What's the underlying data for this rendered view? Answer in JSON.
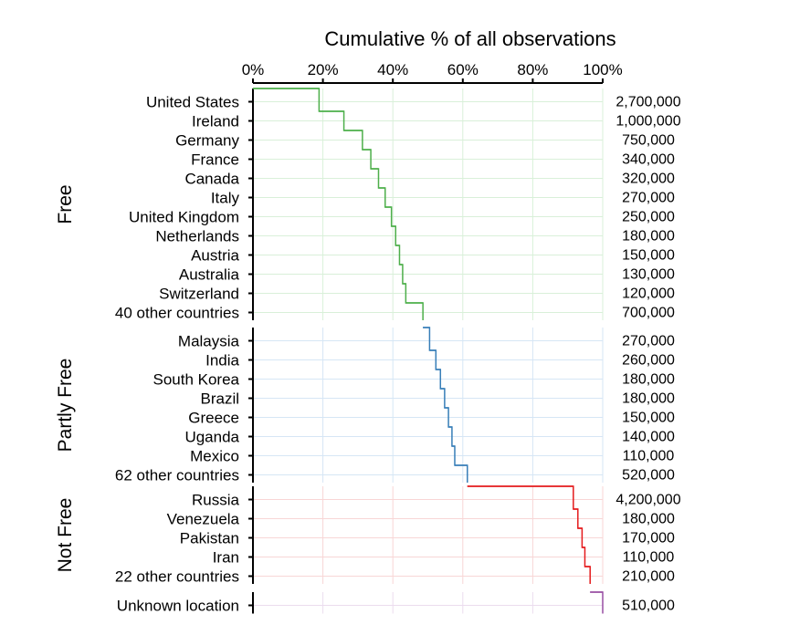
{
  "chart_data": {
    "type": "line",
    "title": "Cumulative % of all observations",
    "x_ticks": [
      "0%",
      "20%",
      "40%",
      "60%",
      "80%",
      "100%"
    ],
    "xlim": [
      0,
      100
    ],
    "grid": true,
    "groups": [
      {
        "name": "Free",
        "color": "#4daf4a",
        "gridColor": "#d9f0d9",
        "items": [
          {
            "label": "United States",
            "value": "2,700,000",
            "start": 0.0,
            "end": 18.9
          },
          {
            "label": "Ireland",
            "value": "1,000,000",
            "start": 18.9,
            "end": 26.0
          },
          {
            "label": "Germany",
            "value": "750,000",
            "start": 26.0,
            "end": 31.3
          },
          {
            "label": "France",
            "value": "340,000",
            "start": 31.3,
            "end": 33.7
          },
          {
            "label": "Canada",
            "value": "320,000",
            "start": 33.7,
            "end": 35.9
          },
          {
            "label": "Italy",
            "value": "270,000",
            "start": 35.9,
            "end": 37.8
          },
          {
            "label": "United Kingdom",
            "value": "250,000",
            "start": 37.8,
            "end": 39.6
          },
          {
            "label": "Netherlands",
            "value": "180,000",
            "start": 39.6,
            "end": 40.8
          },
          {
            "label": "Austria",
            "value": "150,000",
            "start": 40.8,
            "end": 41.9
          },
          {
            "label": "Australia",
            "value": "130,000",
            "start": 41.9,
            "end": 42.8
          },
          {
            "label": "Switzerland",
            "value": "120,000",
            "start": 42.8,
            "end": 43.7
          },
          {
            "label": "40 other countries",
            "value": "700,000",
            "start": 43.7,
            "end": 48.6
          }
        ]
      },
      {
        "name": "Partly Free",
        "color": "#377eb8",
        "gridColor": "#d6e6f5",
        "items": [
          {
            "label": "Malaysia",
            "value": "270,000",
            "start": 48.6,
            "end": 50.5
          },
          {
            "label": "India",
            "value": "260,000",
            "start": 50.5,
            "end": 52.3
          },
          {
            "label": "South Korea",
            "value": "180,000",
            "start": 52.3,
            "end": 53.6
          },
          {
            "label": "Brazil",
            "value": "180,000",
            "start": 53.6,
            "end": 54.8
          },
          {
            "label": "Greece",
            "value": "150,000",
            "start": 54.8,
            "end": 55.9
          },
          {
            "label": "Uganda",
            "value": "140,000",
            "start": 55.9,
            "end": 56.9
          },
          {
            "label": "Mexico",
            "value": "110,000",
            "start": 56.9,
            "end": 57.7
          },
          {
            "label": "62 other countries",
            "value": "520,000",
            "start": 57.7,
            "end": 61.3
          }
        ]
      },
      {
        "name": "Not Free",
        "color": "#e41a1c",
        "gridColor": "#f8d6d6",
        "items": [
          {
            "label": "Russia",
            "value": "4,200,000",
            "start": 61.3,
            "end": 91.6
          },
          {
            "label": "Venezuela",
            "value": "180,000",
            "start": 91.6,
            "end": 92.9
          },
          {
            "label": "Pakistan",
            "value": "170,000",
            "start": 92.9,
            "end": 94.1
          },
          {
            "label": "Iran",
            "value": "110,000",
            "start": 94.1,
            "end": 94.9
          },
          {
            "label": "22 other countries",
            "value": "210,000",
            "start": 94.9,
            "end": 96.4
          }
        ]
      },
      {
        "name": "",
        "color": "#984ea3",
        "gridColor": "#ebdcee",
        "items": [
          {
            "label": "Unknown location",
            "value": "510,000",
            "start": 96.4,
            "end": 100.0
          }
        ]
      }
    ]
  }
}
